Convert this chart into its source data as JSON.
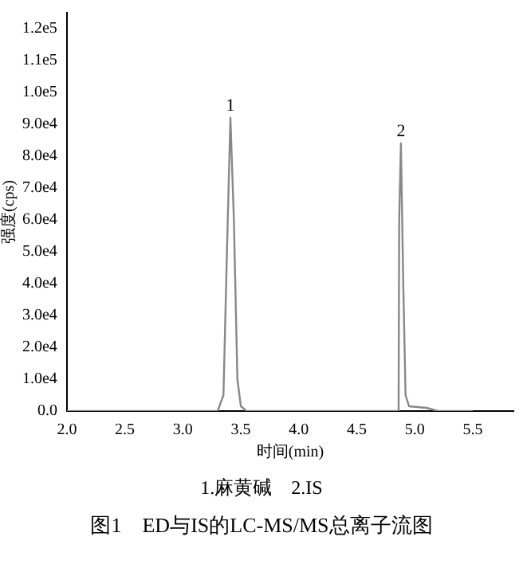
{
  "chart_data": {
    "type": "line",
    "title": "图1　ED与IS的LC-MS/MS总离子流图",
    "xlabel": "时间(min)",
    "ylabel": "强度(cps)",
    "x": [
      2.0,
      3.3,
      3.35,
      3.38,
      3.41,
      3.44,
      3.47,
      3.5,
      3.55,
      4.86,
      4.865,
      4.88,
      4.9,
      4.92,
      4.95,
      5.1,
      5.2,
      5.5
    ],
    "series": [
      {
        "color": "#888888",
        "values": [
          0,
          0,
          5000,
          50000,
          92000,
          60000,
          10000,
          1500,
          0,
          0,
          60000,
          84000,
          40000,
          5000,
          1500,
          1000,
          0,
          0
        ]
      }
    ],
    "xlim": [
      2.0,
      5.85
    ],
    "ylim": [
      0,
      125000
    ],
    "xticks": [
      {
        "value": 2.0,
        "label": "2.0"
      },
      {
        "value": 2.5,
        "label": "2.5"
      },
      {
        "value": 3.0,
        "label": "3.0"
      },
      {
        "value": 3.5,
        "label": "3.5"
      },
      {
        "value": 4.0,
        "label": "4.0"
      },
      {
        "value": 4.5,
        "label": "4.5"
      },
      {
        "value": 5.0,
        "label": "5.0"
      },
      {
        "value": 5.5,
        "label": "5.5"
      }
    ],
    "yticks": [
      {
        "value": 0,
        "label": "0.0"
      },
      {
        "value": 10000,
        "label": "1.0e4"
      },
      {
        "value": 20000,
        "label": "2.0e4"
      },
      {
        "value": 30000,
        "label": "3.0e4"
      },
      {
        "value": 40000,
        "label": "4.0e4"
      },
      {
        "value": 50000,
        "label": "5.0e4"
      },
      {
        "value": 60000,
        "label": "6.0e4"
      },
      {
        "value": 70000,
        "label": "7.0e4"
      },
      {
        "value": 80000,
        "label": "8.0e4"
      },
      {
        "value": 90000,
        "label": "9.0e4"
      },
      {
        "value": 100000,
        "label": "1.0e5"
      },
      {
        "value": 110000,
        "label": "1.1e5"
      },
      {
        "value": 120000,
        "label": "1.2e5"
      }
    ],
    "annotations": [
      {
        "text": "1",
        "x": 3.41,
        "y": 92000
      },
      {
        "text": "2",
        "x": 4.88,
        "y": 84000
      },
      "1.麻黄碱　2.IS"
    ]
  }
}
